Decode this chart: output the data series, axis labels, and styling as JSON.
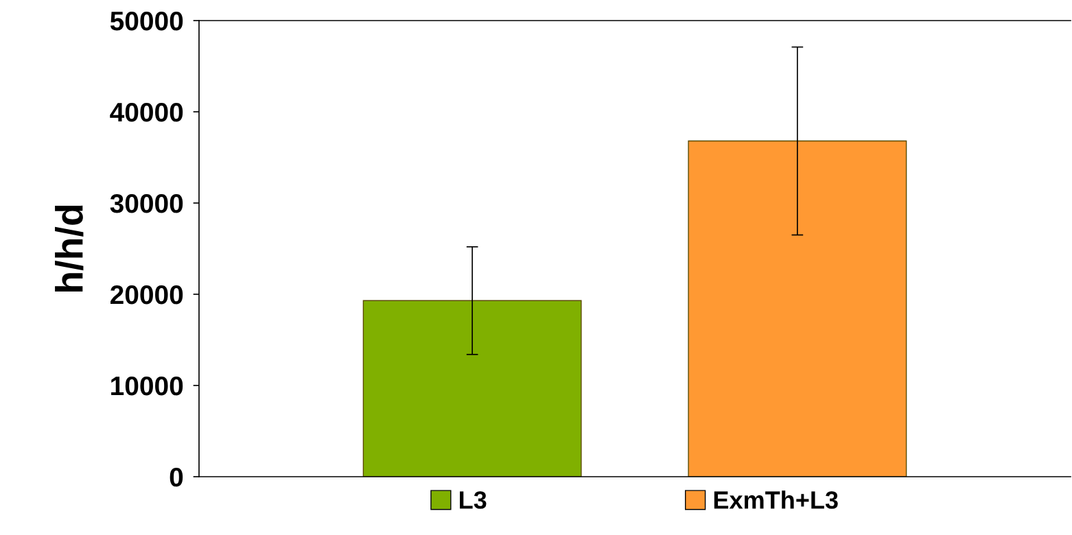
{
  "chart_data": {
    "type": "bar",
    "ylabel": "h/h/d",
    "categories": [
      null
    ],
    "series": [
      {
        "name": "L3",
        "color": "#80b000",
        "values": [
          19300
        ],
        "errors": [
          5900
        ]
      },
      {
        "name": "ExmTh+L3",
        "color": "#ff9933",
        "values": [
          36800
        ],
        "errors": [
          10300
        ]
      }
    ],
    "ylim": [
      0,
      50000
    ],
    "yticks": [
      0,
      10000,
      20000,
      30000,
      40000,
      50000
    ],
    "grid": false,
    "legend": "bottom"
  }
}
